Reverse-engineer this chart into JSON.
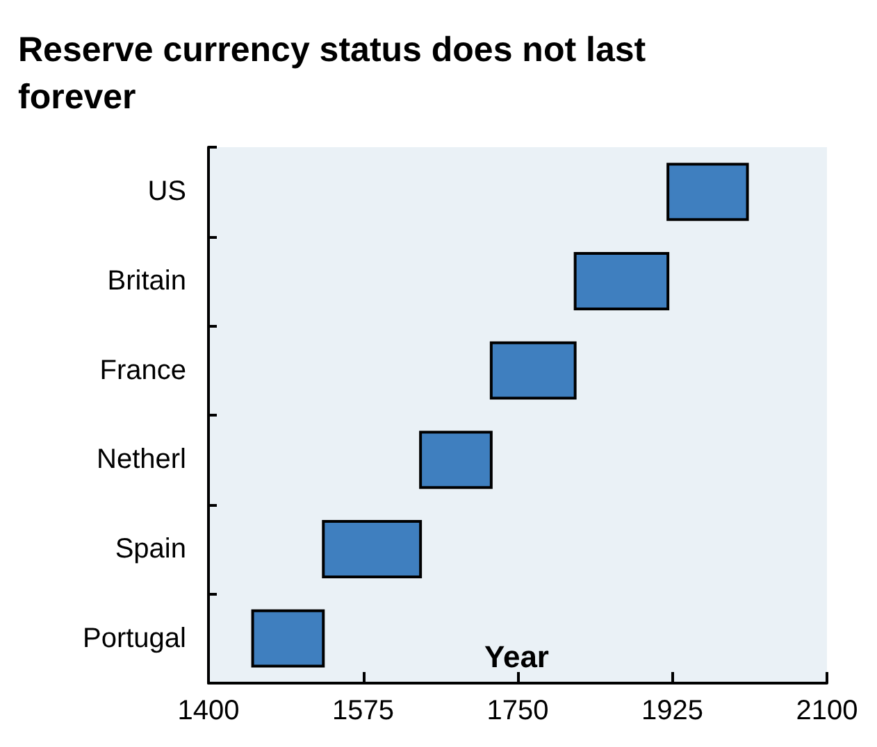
{
  "chart_data": {
    "type": "bar",
    "orientation": "horizontal",
    "title": "Reserve currency status does not last forever",
    "xlabel": "Year",
    "categories": [
      "US",
      "Britain",
      "France",
      "Netherl",
      "Spain",
      "Portugal"
    ],
    "base": [
      1920,
      1815,
      1720,
      1640,
      1530,
      1450
    ],
    "values": [
      90,
      105,
      95,
      80,
      110,
      80
    ],
    "color": "#3f7fbf",
    "xlim": [
      1400,
      2100
    ],
    "xticks": [
      1400,
      1575,
      1750,
      1925,
      2100
    ],
    "grid": false
  }
}
